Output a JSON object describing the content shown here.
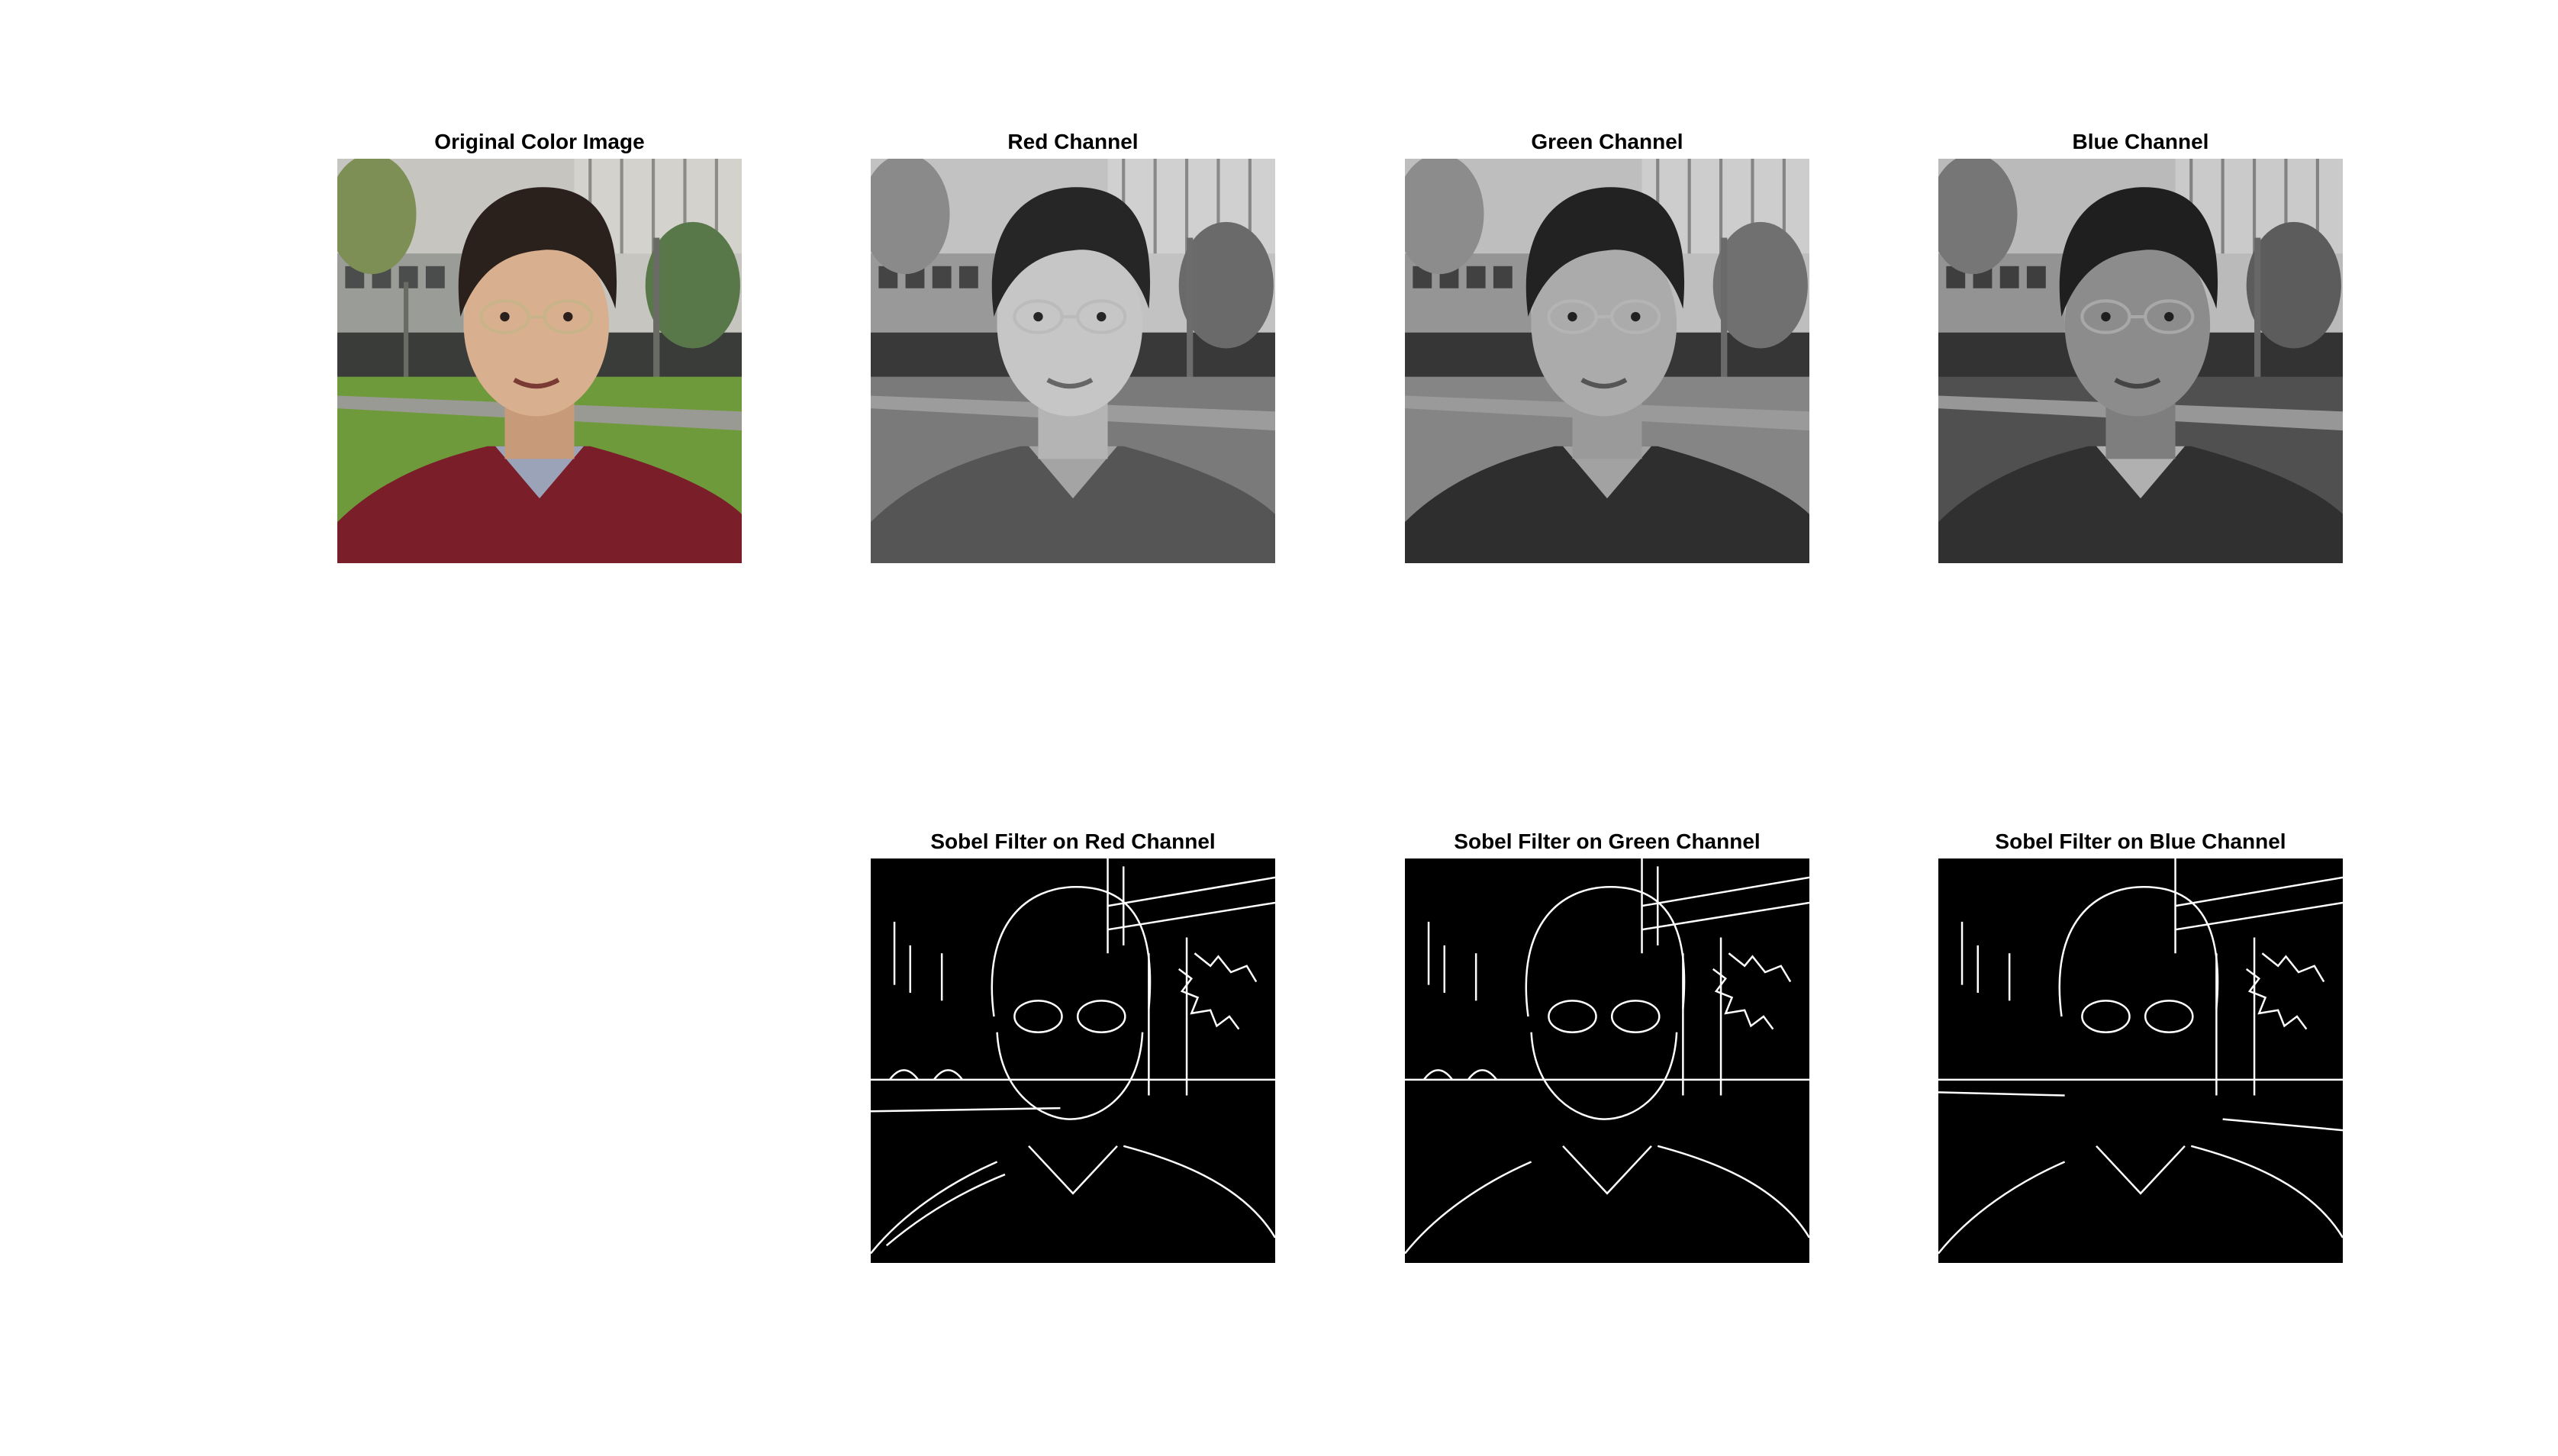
{
  "figure": {
    "panels": [
      {
        "title": "Original Color Image",
        "kind": "color"
      },
      {
        "title": "Red Channel",
        "kind": "gray-red"
      },
      {
        "title": "Green Channel",
        "kind": "gray-green"
      },
      {
        "title": "Blue Channel",
        "kind": "gray-blue"
      },
      {
        "title": "Sobel Filter on Red Channel",
        "kind": "edges"
      },
      {
        "title": "Sobel Filter on Green Channel",
        "kind": "edges"
      },
      {
        "title": "Sobel Filter on Blue Channel",
        "kind": "edges"
      }
    ]
  },
  "colors": {
    "background": "#ffffff",
    "sky_building": "#c9c9c4",
    "grass": "#6f9a3c",
    "shirt": "#7a1f2a",
    "skin": "#d8b08f",
    "hair": "#2a211c",
    "edge_bg": "#000000",
    "edge_line": "#ffffff"
  }
}
